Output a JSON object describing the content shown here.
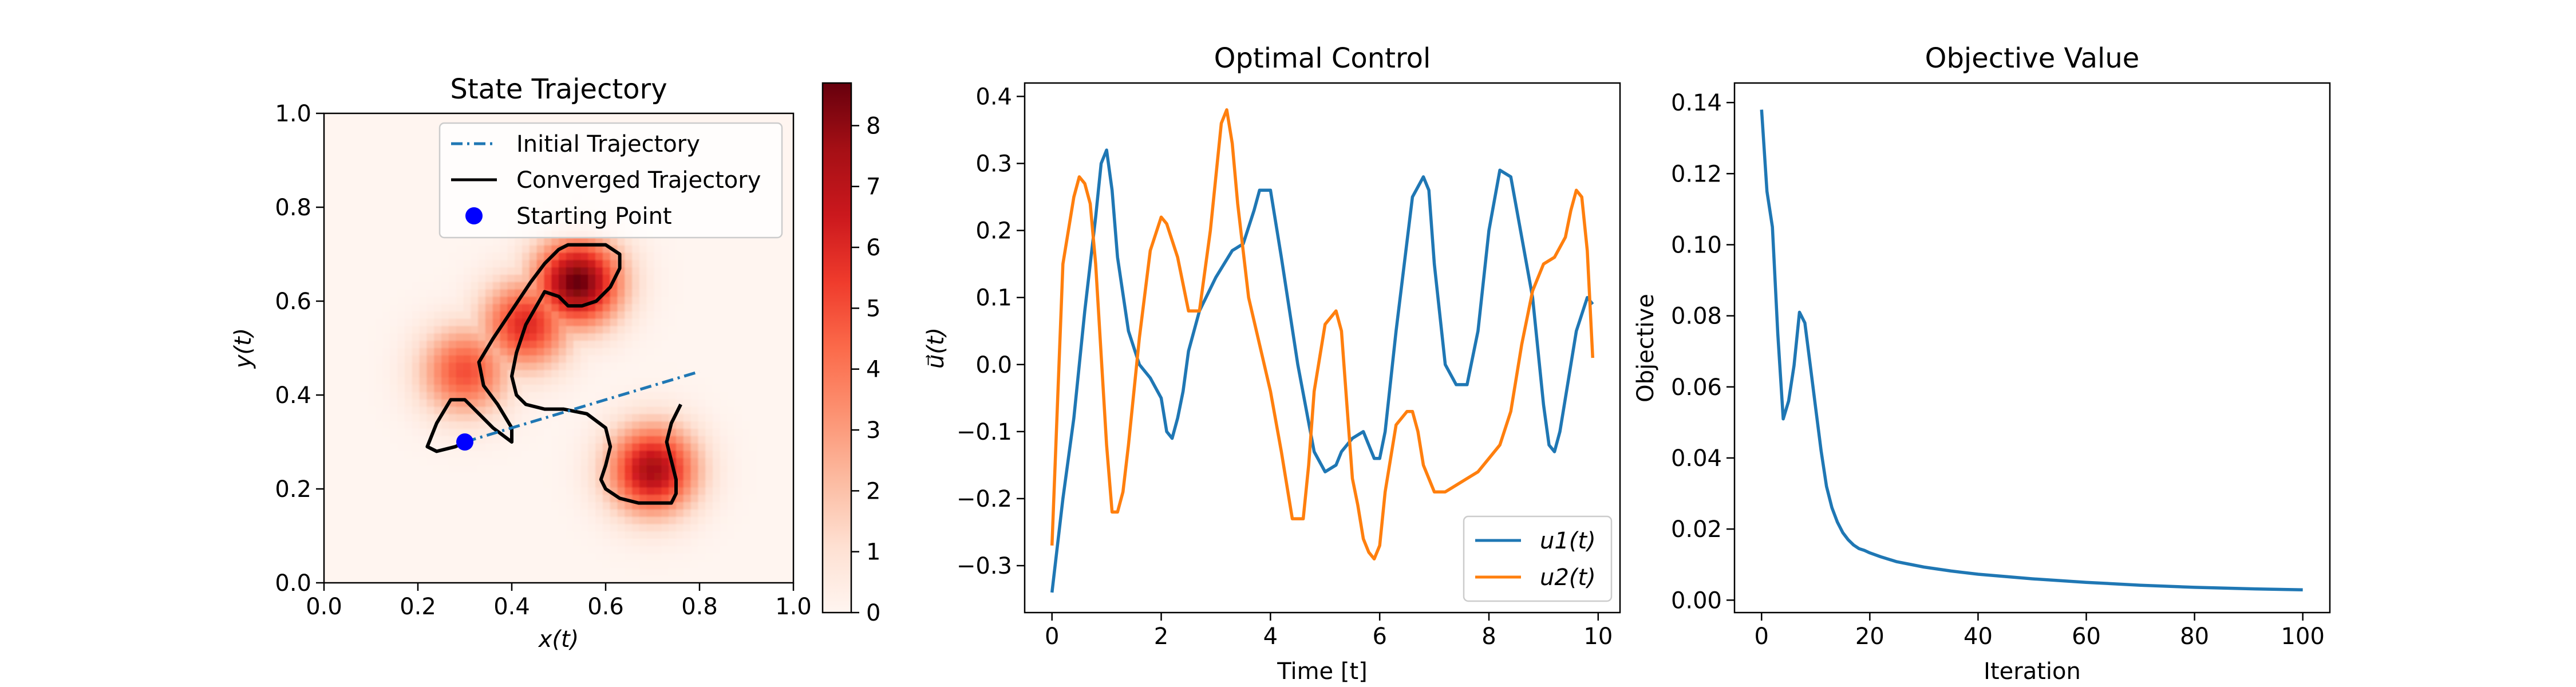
{
  "chart_data": [
    {
      "type": "heatmap",
      "title": "State Trajectory",
      "xlabel": "x(t)",
      "ylabel": "y(t)",
      "xlim": [
        0.0,
        1.0
      ],
      "ylim": [
        0.0,
        1.0
      ],
      "xticks": [
        "0.0",
        "0.2",
        "0.4",
        "0.6",
        "0.8",
        "1.0"
      ],
      "yticks": [
        "0.0",
        "0.2",
        "0.4",
        "0.6",
        "0.8",
        "1.0"
      ],
      "colormap": "Reds",
      "colorbar": {
        "range": [
          0,
          8.7
        ],
        "ticks": [
          "0",
          "1",
          "2",
          "3",
          "4",
          "5",
          "6",
          "7",
          "8"
        ]
      },
      "density_peaks": [
        {
          "x": 0.54,
          "y": 0.64,
          "peak": 8.7
        },
        {
          "x": 0.43,
          "y": 0.55,
          "peak": 6.0
        },
        {
          "x": 0.3,
          "y": 0.45,
          "peak": 5.0
        },
        {
          "x": 0.7,
          "y": 0.24,
          "peak": 7.5
        }
      ],
      "legend_position": "upper right",
      "series": [
        {
          "name": "Initial Trajectory",
          "style": "dash-dot",
          "color": "#1f77b4",
          "x": [
            0.3,
            0.8
          ],
          "y": [
            0.3,
            0.45
          ]
        },
        {
          "name": "Converged Trajectory",
          "style": "solid",
          "color": "#000000",
          "x": [
            0.3,
            0.28,
            0.24,
            0.22,
            0.24,
            0.27,
            0.3,
            0.33,
            0.36,
            0.4,
            0.4,
            0.37,
            0.34,
            0.33,
            0.36,
            0.4,
            0.44,
            0.47,
            0.49,
            0.5,
            0.52,
            0.56,
            0.6,
            0.63,
            0.63,
            0.61,
            0.58,
            0.55,
            0.52,
            0.5,
            0.47,
            0.43,
            0.41,
            0.4,
            0.41,
            0.43,
            0.47,
            0.51,
            0.56,
            0.6,
            0.61,
            0.6,
            0.59,
            0.6,
            0.63,
            0.67,
            0.71,
            0.74,
            0.75,
            0.75,
            0.74,
            0.73,
            0.74,
            0.76
          ],
          "y": [
            0.3,
            0.29,
            0.28,
            0.29,
            0.34,
            0.39,
            0.39,
            0.36,
            0.33,
            0.3,
            0.33,
            0.38,
            0.42,
            0.47,
            0.52,
            0.58,
            0.64,
            0.68,
            0.7,
            0.71,
            0.72,
            0.72,
            0.72,
            0.7,
            0.67,
            0.63,
            0.6,
            0.59,
            0.59,
            0.61,
            0.62,
            0.55,
            0.49,
            0.44,
            0.4,
            0.38,
            0.37,
            0.37,
            0.36,
            0.33,
            0.29,
            0.25,
            0.22,
            0.2,
            0.18,
            0.17,
            0.17,
            0.17,
            0.19,
            0.22,
            0.26,
            0.3,
            0.34,
            0.38
          ]
        },
        {
          "name": "Starting Point",
          "style": "marker",
          "color": "#0000ff",
          "x": [
            0.3
          ],
          "y": [
            0.3
          ]
        }
      ]
    },
    {
      "type": "line",
      "title": "Optimal Control",
      "xlabel": "Time [t]",
      "ylabel": "u⃗(t)",
      "xlim": [
        -0.5,
        10.4
      ],
      "ylim": [
        -0.37,
        0.42
      ],
      "xticks": [
        "0",
        "2",
        "4",
        "6",
        "8",
        "10"
      ],
      "yticks": [
        "−0.3",
        "−0.2",
        "−0.1",
        "0.0",
        "0.1",
        "0.2",
        "0.3",
        "0.4"
      ],
      "legend_position": "lower right",
      "series": [
        {
          "name": "u1(t)",
          "color": "#1f77b4",
          "x": [
            0.0,
            0.2,
            0.4,
            0.6,
            0.8,
            0.9,
            1.0,
            1.1,
            1.2,
            1.4,
            1.6,
            1.8,
            2.0,
            2.1,
            2.2,
            2.3,
            2.4,
            2.5,
            2.7,
            3.0,
            3.3,
            3.5,
            3.7,
            3.8,
            4.0,
            4.2,
            4.5,
            4.8,
            5.0,
            5.2,
            5.3,
            5.5,
            5.7,
            5.8,
            5.9,
            6.0,
            6.1,
            6.3,
            6.6,
            6.8,
            6.9,
            7.0,
            7.2,
            7.4,
            7.6,
            7.8,
            8.0,
            8.2,
            8.4,
            8.6,
            8.8,
            9.0,
            9.1,
            9.2,
            9.3,
            9.4,
            9.6,
            9.8,
            9.9
          ],
          "y": [
            -0.34,
            -0.2,
            -0.08,
            0.08,
            0.22,
            0.3,
            0.32,
            0.26,
            0.16,
            0.05,
            0.0,
            -0.02,
            -0.05,
            -0.1,
            -0.11,
            -0.08,
            -0.04,
            0.02,
            0.08,
            0.13,
            0.17,
            0.18,
            0.23,
            0.26,
            0.26,
            0.16,
            0.0,
            -0.13,
            -0.16,
            -0.15,
            -0.13,
            -0.11,
            -0.1,
            -0.12,
            -0.14,
            -0.14,
            -0.1,
            0.05,
            0.25,
            0.28,
            0.26,
            0.15,
            0.0,
            -0.03,
            -0.03,
            0.05,
            0.2,
            0.29,
            0.28,
            0.19,
            0.1,
            -0.06,
            -0.12,
            -0.13,
            -0.1,
            -0.05,
            0.05,
            0.1,
            0.09
          ]
        },
        {
          "name": "u2(t)",
          "color": "#ff7f0e",
          "x": [
            0.0,
            0.2,
            0.4,
            0.5,
            0.6,
            0.7,
            0.8,
            1.0,
            1.1,
            1.2,
            1.3,
            1.4,
            1.6,
            1.8,
            2.0,
            2.1,
            2.3,
            2.5,
            2.7,
            2.9,
            3.1,
            3.2,
            3.3,
            3.4,
            3.6,
            3.8,
            4.0,
            4.2,
            4.4,
            4.6,
            4.7,
            4.8,
            5.0,
            5.2,
            5.3,
            5.4,
            5.5,
            5.6,
            5.7,
            5.8,
            5.9,
            6.0,
            6.1,
            6.3,
            6.5,
            6.6,
            6.7,
            6.8,
            7.0,
            7.2,
            7.4,
            7.6,
            7.8,
            8.0,
            8.2,
            8.4,
            8.6,
            8.8,
            9.0,
            9.2,
            9.4,
            9.5,
            9.6,
            9.7,
            9.8,
            9.9
          ],
          "y": [
            -0.27,
            0.15,
            0.25,
            0.28,
            0.27,
            0.24,
            0.15,
            -0.12,
            -0.22,
            -0.22,
            -0.19,
            -0.12,
            0.04,
            0.17,
            0.22,
            0.21,
            0.16,
            0.08,
            0.08,
            0.2,
            0.36,
            0.38,
            0.33,
            0.24,
            0.1,
            0.03,
            -0.04,
            -0.13,
            -0.23,
            -0.23,
            -0.15,
            -0.04,
            0.06,
            0.08,
            0.05,
            -0.06,
            -0.17,
            -0.21,
            -0.26,
            -0.28,
            -0.29,
            -0.27,
            -0.19,
            -0.09,
            -0.07,
            -0.07,
            -0.1,
            -0.15,
            -0.19,
            -0.19,
            -0.18,
            -0.17,
            -0.16,
            -0.14,
            -0.12,
            -0.07,
            0.03,
            0.11,
            0.15,
            0.16,
            0.19,
            0.23,
            0.26,
            0.25,
            0.17,
            0.01
          ]
        }
      ]
    },
    {
      "type": "line",
      "title": "Objective Value",
      "xlabel": "Iteration",
      "ylabel": "Objective",
      "xlim": [
        -5,
        105
      ],
      "ylim": [
        -0.0035,
        0.1455
      ],
      "xticks": [
        "0",
        "20",
        "40",
        "60",
        "80",
        "100"
      ],
      "yticks": [
        "0.00",
        "0.02",
        "0.04",
        "0.06",
        "0.08",
        "0.10",
        "0.12",
        "0.14"
      ],
      "series": [
        {
          "color": "#1f77b4",
          "x": [
            0,
            1,
            2,
            3,
            4,
            5,
            6,
            7,
            8,
            9,
            10,
            11,
            12,
            13,
            14,
            15,
            16,
            17,
            18,
            19,
            20,
            22,
            25,
            30,
            35,
            40,
            50,
            60,
            70,
            80,
            90,
            100
          ],
          "y": [
            0.138,
            0.115,
            0.105,
            0.075,
            0.051,
            0.056,
            0.066,
            0.081,
            0.078,
            0.066,
            0.054,
            0.042,
            0.032,
            0.026,
            0.022,
            0.019,
            0.017,
            0.0155,
            0.0145,
            0.014,
            0.0133,
            0.0122,
            0.0108,
            0.0093,
            0.0082,
            0.0073,
            0.006,
            0.005,
            0.0042,
            0.0036,
            0.0032,
            0.0029
          ]
        }
      ]
    }
  ]
}
